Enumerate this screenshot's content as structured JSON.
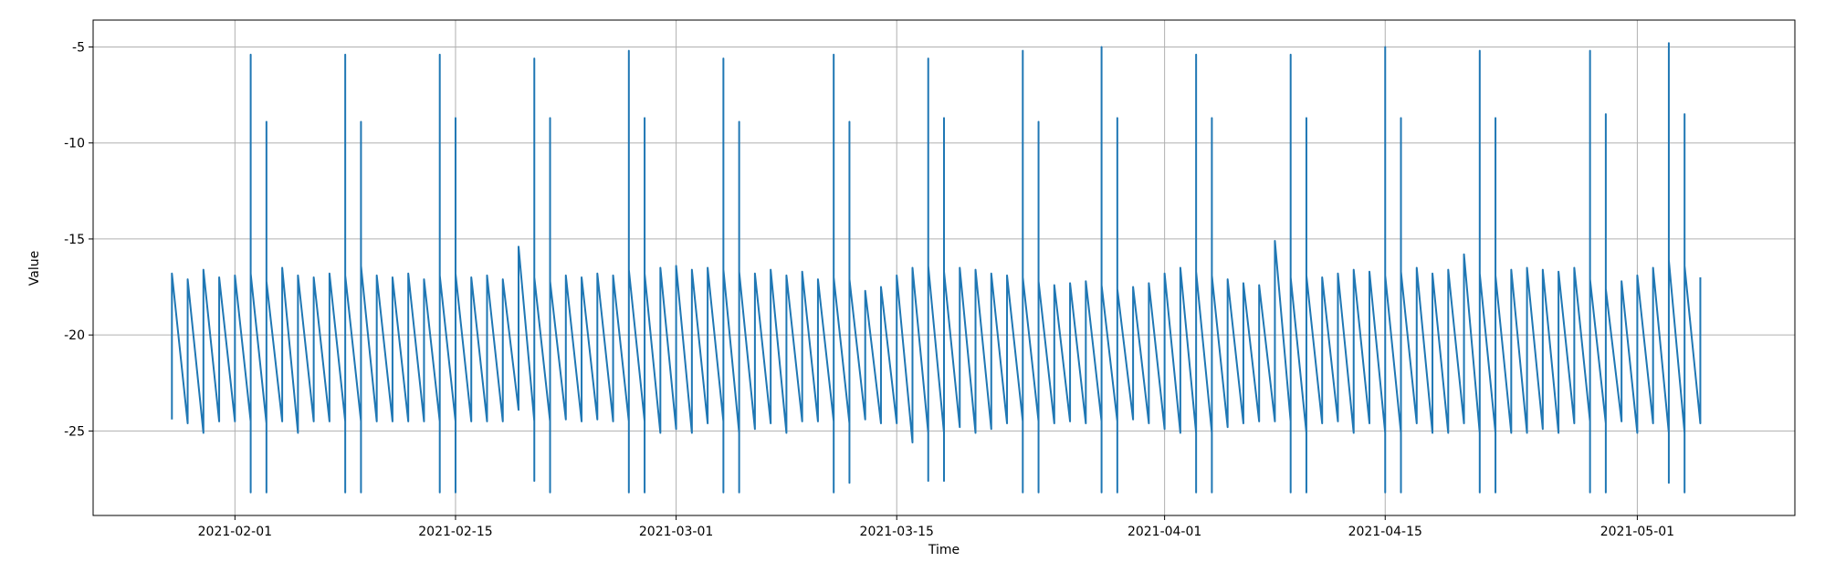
{
  "chart_data": {
    "type": "line",
    "x_label": "Time",
    "y_label": "Value",
    "grid": true,
    "xlim": [
      "2021-01-23",
      "2021-05-11"
    ],
    "xticks": [
      "2021-02-01",
      "2021-02-15",
      "2021-03-01",
      "2021-03-15",
      "2021-04-01",
      "2021-04-15",
      "2021-05-01"
    ],
    "ylim": [
      -29.4,
      -3.6
    ],
    "yticks": [
      -25,
      -20,
      -15,
      -10,
      -5
    ],
    "series": [
      {
        "color": "#1f77b4",
        "x": [
          "2021-01-28",
          "2021-01-28",
          "2021-01-29",
          "2021-01-29",
          "2021-01-30",
          "2021-01-30",
          "2021-01-31",
          "2021-01-31",
          "2021-02-01",
          "2021-02-01",
          "2021-02-02",
          "2021-02-02",
          "2021-02-02",
          "2021-02-02",
          "2021-02-03",
          "2021-02-03",
          "2021-02-03",
          "2021-02-03",
          "2021-02-04",
          "2021-02-04",
          "2021-02-05",
          "2021-02-05",
          "2021-02-06",
          "2021-02-06",
          "2021-02-07",
          "2021-02-07",
          "2021-02-08",
          "2021-02-08",
          "2021-02-08",
          "2021-02-08",
          "2021-02-09",
          "2021-02-09",
          "2021-02-09",
          "2021-02-09",
          "2021-02-10",
          "2021-02-10",
          "2021-02-11",
          "2021-02-11",
          "2021-02-12",
          "2021-02-12",
          "2021-02-13",
          "2021-02-13",
          "2021-02-14",
          "2021-02-14",
          "2021-02-14",
          "2021-02-14",
          "2021-02-15",
          "2021-02-15",
          "2021-02-15",
          "2021-02-15",
          "2021-02-16",
          "2021-02-16",
          "2021-02-17",
          "2021-02-17",
          "2021-02-18",
          "2021-02-18",
          "2021-02-19",
          "2021-02-19",
          "2021-02-20",
          "2021-02-20",
          "2021-02-20",
          "2021-02-20",
          "2021-02-21",
          "2021-02-21",
          "2021-02-21",
          "2021-02-21",
          "2021-02-22",
          "2021-02-22",
          "2021-02-23",
          "2021-02-23",
          "2021-02-24",
          "2021-02-24",
          "2021-02-25",
          "2021-02-25",
          "2021-02-26",
          "2021-02-26",
          "2021-02-26",
          "2021-02-26",
          "2021-02-27",
          "2021-02-27",
          "2021-02-27",
          "2021-02-27",
          "2021-02-28",
          "2021-02-28",
          "2021-03-01",
          "2021-03-01",
          "2021-03-02",
          "2021-03-02",
          "2021-03-03",
          "2021-03-03",
          "2021-03-04",
          "2021-03-04",
          "2021-03-04",
          "2021-03-04",
          "2021-03-05",
          "2021-03-05",
          "2021-03-05",
          "2021-03-05",
          "2021-03-06",
          "2021-03-06",
          "2021-03-07",
          "2021-03-07",
          "2021-03-08",
          "2021-03-08",
          "2021-03-09",
          "2021-03-09",
          "2021-03-10",
          "2021-03-10",
          "2021-03-11",
          "2021-03-11",
          "2021-03-11",
          "2021-03-11",
          "2021-03-12",
          "2021-03-12",
          "2021-03-12",
          "2021-03-12",
          "2021-03-13",
          "2021-03-13",
          "2021-03-14",
          "2021-03-14",
          "2021-03-15",
          "2021-03-15",
          "2021-03-16",
          "2021-03-16",
          "2021-03-17",
          "2021-03-17",
          "2021-03-17",
          "2021-03-17",
          "2021-03-18",
          "2021-03-18",
          "2021-03-18",
          "2021-03-18",
          "2021-03-19",
          "2021-03-19",
          "2021-03-20",
          "2021-03-20",
          "2021-03-21",
          "2021-03-21",
          "2021-03-22",
          "2021-03-22",
          "2021-03-23",
          "2021-03-23",
          "2021-03-23",
          "2021-03-23",
          "2021-03-24",
          "2021-03-24",
          "2021-03-24",
          "2021-03-24",
          "2021-03-25",
          "2021-03-25",
          "2021-03-26",
          "2021-03-26",
          "2021-03-27",
          "2021-03-27",
          "2021-03-28",
          "2021-03-28",
          "2021-03-28",
          "2021-03-28",
          "2021-03-29",
          "2021-03-29",
          "2021-03-29",
          "2021-03-29",
          "2021-03-30",
          "2021-03-30",
          "2021-03-31",
          "2021-03-31",
          "2021-04-01",
          "2021-04-01",
          "2021-04-02",
          "2021-04-02",
          "2021-04-03",
          "2021-04-03",
          "2021-04-03",
          "2021-04-03",
          "2021-04-04",
          "2021-04-04",
          "2021-04-04",
          "2021-04-04",
          "2021-04-05",
          "2021-04-05",
          "2021-04-06",
          "2021-04-06",
          "2021-04-07",
          "2021-04-07",
          "2021-04-08",
          "2021-04-08",
          "2021-04-09",
          "2021-04-09",
          "2021-04-09",
          "2021-04-09",
          "2021-04-10",
          "2021-04-10",
          "2021-04-10",
          "2021-04-10",
          "2021-04-11",
          "2021-04-11",
          "2021-04-12",
          "2021-04-12",
          "2021-04-13",
          "2021-04-13",
          "2021-04-14",
          "2021-04-14",
          "2021-04-15",
          "2021-04-15",
          "2021-04-15",
          "2021-04-15",
          "2021-04-16",
          "2021-04-16",
          "2021-04-16",
          "2021-04-16",
          "2021-04-17",
          "2021-04-17",
          "2021-04-18",
          "2021-04-18",
          "2021-04-19",
          "2021-04-19",
          "2021-04-20",
          "2021-04-20",
          "2021-04-21",
          "2021-04-21",
          "2021-04-21",
          "2021-04-21",
          "2021-04-22",
          "2021-04-22",
          "2021-04-22",
          "2021-04-22",
          "2021-04-23",
          "2021-04-23",
          "2021-04-24",
          "2021-04-24",
          "2021-04-25",
          "2021-04-25",
          "2021-04-26",
          "2021-04-26",
          "2021-04-27",
          "2021-04-27",
          "2021-04-28",
          "2021-04-28",
          "2021-04-28",
          "2021-04-28",
          "2021-04-29",
          "2021-04-29",
          "2021-04-29",
          "2021-04-29",
          "2021-04-30",
          "2021-04-30",
          "2021-05-01",
          "2021-05-01",
          "2021-05-02",
          "2021-05-02",
          "2021-05-03",
          "2021-05-03",
          "2021-05-03",
          "2021-05-03",
          "2021-05-04",
          "2021-05-04",
          "2021-05-04",
          "2021-05-04",
          "2021-05-05",
          "2021-05-05"
        ],
        "values": [
          -24.4,
          -16.8,
          -24.6,
          -17.1,
          -25.1,
          -16.6,
          -24.5,
          -17.0,
          -24.5,
          -16.9,
          -24.5,
          -5.4,
          -28.2,
          -16.8,
          -24.6,
          -8.9,
          -28.2,
          -17.2,
          -24.5,
          -16.5,
          -25.1,
          -16.9,
          -24.5,
          -17.0,
          -24.5,
          -16.8,
          -24.5,
          -5.4,
          -28.2,
          -16.9,
          -24.5,
          -8.9,
          -28.2,
          -16.4,
          -24.5,
          -16.9,
          -24.5,
          -17.0,
          -24.5,
          -16.8,
          -24.5,
          -17.1,
          -24.5,
          -5.4,
          -28.2,
          -16.9,
          -24.5,
          -8.7,
          -28.2,
          -16.8,
          -24.5,
          -17.0,
          -24.5,
          -16.9,
          -24.5,
          -17.1,
          -23.9,
          -15.4,
          -24.5,
          -5.6,
          -27.6,
          -17.0,
          -24.5,
          -8.7,
          -28.2,
          -17.2,
          -24.4,
          -16.9,
          -24.5,
          -17.0,
          -24.4,
          -16.8,
          -24.5,
          -16.9,
          -24.5,
          -5.2,
          -28.2,
          -16.6,
          -24.5,
          -8.7,
          -28.2,
          -16.8,
          -25.1,
          -16.5,
          -24.9,
          -16.4,
          -25.1,
          -16.6,
          -24.6,
          -16.5,
          -24.5,
          -5.6,
          -28.2,
          -16.6,
          -25.1,
          -8.9,
          -28.2,
          -16.7,
          -24.9,
          -16.8,
          -24.6,
          -16.6,
          -25.1,
          -16.9,
          -24.5,
          -16.7,
          -24.5,
          -17.1,
          -24.5,
          -5.4,
          -28.2,
          -17.0,
          -24.6,
          -8.9,
          -27.7,
          -17.1,
          -24.4,
          -17.7,
          -24.6,
          -17.5,
          -24.6,
          -16.9,
          -25.6,
          -16.5,
          -25.1,
          -5.6,
          -27.6,
          -16.4,
          -25.1,
          -8.7,
          -27.6,
          -16.7,
          -24.8,
          -16.5,
          -25.1,
          -16.6,
          -24.9,
          -16.8,
          -24.6,
          -16.9,
          -24.5,
          -5.2,
          -28.2,
          -17.0,
          -24.5,
          -8.9,
          -28.2,
          -17.2,
          -24.6,
          -17.4,
          -24.5,
          -17.3,
          -24.6,
          -17.2,
          -24.5,
          -5.0,
          -28.2,
          -17.4,
          -24.5,
          -8.7,
          -28.2,
          -17.6,
          -24.4,
          -17.5,
          -24.6,
          -17.3,
          -24.9,
          -16.8,
          -25.1,
          -16.5,
          -25.1,
          -5.4,
          -28.2,
          -16.7,
          -25.1,
          -8.7,
          -28.2,
          -16.9,
          -24.8,
          -17.1,
          -24.6,
          -17.3,
          -24.5,
          -17.4,
          -24.5,
          -15.1,
          -24.5,
          -5.4,
          -28.2,
          -17.0,
          -25.1,
          -8.7,
          -28.2,
          -16.9,
          -24.6,
          -17.0,
          -24.5,
          -16.8,
          -25.1,
          -16.6,
          -24.6,
          -16.7,
          -25.1,
          -5.0,
          -28.2,
          -16.9,
          -25.1,
          -8.7,
          -28.2,
          -16.7,
          -24.6,
          -16.5,
          -25.1,
          -16.8,
          -25.1,
          -16.6,
          -24.6,
          -15.8,
          -25.1,
          -5.2,
          -28.2,
          -16.8,
          -25.1,
          -8.7,
          -28.2,
          -16.9,
          -25.1,
          -16.6,
          -25.1,
          -16.5,
          -24.9,
          -16.6,
          -25.1,
          -16.7,
          -24.6,
          -16.5,
          -24.5,
          -5.2,
          -28.2,
          -17.1,
          -24.6,
          -8.5,
          -28.2,
          -17.6,
          -24.5,
          -17.2,
          -25.1,
          -16.9,
          -24.6,
          -16.5,
          -25.1,
          -4.8,
          -27.7,
          -16.1,
          -25.1,
          -8.5,
          -28.2,
          -16.4,
          -24.6,
          -17.0
        ]
      }
    ]
  }
}
